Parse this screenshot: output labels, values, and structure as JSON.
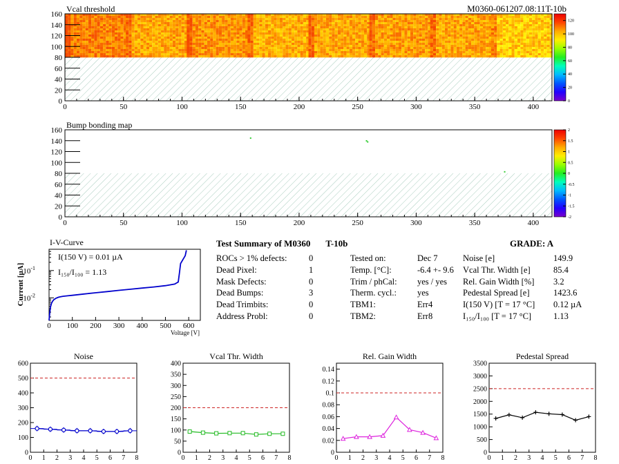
{
  "module_id": "M0360-061207.08:11T-10b",
  "chart_data": [
    {
      "type": "heatmap",
      "title": "Vcal threshold",
      "x_ticks": [
        "0",
        "50",
        "100",
        "150",
        "200",
        "250",
        "300",
        "350",
        "400"
      ],
      "y_ticks": [
        "0",
        "20",
        "40",
        "60",
        "80",
        "100",
        "120",
        "140",
        "160"
      ],
      "xlim": [
        0,
        416
      ],
      "ylim": [
        0,
        160
      ],
      "populated_rows": [
        80,
        160
      ],
      "roc_mean_values": [
        108,
        100,
        104,
        98,
        100,
        102,
        100,
        92
      ],
      "colorbar_ticks": [
        "0",
        "20",
        "40",
        "60",
        "80",
        "100",
        "120"
      ],
      "colorbar_range": [
        0,
        130
      ]
    },
    {
      "type": "heatmap",
      "title": "Bump bonding map",
      "x_ticks": [
        "0",
        "50",
        "100",
        "150",
        "200",
        "250",
        "300",
        "350",
        "400"
      ],
      "y_ticks": [
        "0",
        "20",
        "40",
        "60",
        "80",
        "100",
        "120",
        "140",
        "160"
      ],
      "xlim": [
        0,
        416
      ],
      "ylim": [
        0,
        160
      ],
      "defect_pixels": [
        [
          158,
          146
        ],
        [
          257,
          141
        ],
        [
          258,
          139
        ],
        [
          375,
          84
        ]
      ],
      "colorbar_ticks": [
        "-2",
        "-1.5",
        "-1",
        "-0.5",
        "0",
        "0.5",
        "1",
        "1.5",
        "2"
      ],
      "colorbar_range": [
        -2,
        2
      ]
    },
    {
      "type": "line",
      "title": "I-V-Curve",
      "xlabel": "Voltage [V]",
      "ylabel": "Current [µA]",
      "log_y": true,
      "xlim": [
        0,
        650
      ],
      "ylim": [
        0.0015,
        0.6
      ],
      "x_ticks": [
        "0",
        "100",
        "200",
        "300",
        "400",
        "500",
        "600"
      ],
      "y_ticks": [
        {
          "value": 0.1,
          "base": "10",
          "exp": "-1"
        },
        {
          "value": 0.01,
          "base": "10",
          "exp": "-2"
        }
      ],
      "annotations": [
        "I(150 V) = 0.01 µA",
        "I₁₅₀/I₁₀₀ = 1.13"
      ],
      "x": [
        0,
        3,
        6,
        10,
        15,
        20,
        30,
        40,
        50,
        60,
        80,
        100,
        150,
        200,
        250,
        300,
        350,
        400,
        450,
        500,
        540,
        555,
        560,
        565,
        575,
        585,
        590
      ],
      "y": [
        0.0015,
        0.0028,
        0.0045,
        0.0062,
        0.0075,
        0.0085,
        0.0097,
        0.0105,
        0.011,
        0.0114,
        0.0119,
        0.0124,
        0.0138,
        0.0154,
        0.017,
        0.0188,
        0.0207,
        0.0228,
        0.025,
        0.028,
        0.032,
        0.038,
        0.08,
        0.18,
        0.25,
        0.35,
        0.55
      ]
    },
    {
      "type": "line",
      "title": "Noise",
      "xlim": [
        0,
        8
      ],
      "ylim": [
        0,
        600
      ],
      "x_ticks": [
        "0",
        "1",
        "2",
        "3",
        "4",
        "5",
        "6",
        "7",
        "8"
      ],
      "y_ticks": [
        "0",
        "100",
        "200",
        "300",
        "400",
        "500",
        "600"
      ],
      "limit": 500,
      "color": "#0000cc",
      "marker": "circle",
      "error_bars": true,
      "x": [
        0.5,
        1.5,
        2.5,
        3.5,
        4.5,
        5.5,
        6.5,
        7.5
      ],
      "y": [
        160,
        155,
        150,
        145,
        145,
        140,
        140,
        145
      ]
    },
    {
      "type": "line",
      "title": "Vcal Thr. Width",
      "xlim": [
        0,
        8
      ],
      "ylim": [
        0,
        400
      ],
      "x_ticks": [
        "0",
        "1",
        "2",
        "3",
        "4",
        "5",
        "6",
        "7",
        "8"
      ],
      "y_ticks": [
        "0",
        "50",
        "100",
        "150",
        "200",
        "250",
        "300",
        "350",
        "400"
      ],
      "limit": 200,
      "color": "#22bb22",
      "marker": "square",
      "error_bars": false,
      "x": [
        0.5,
        1.5,
        2.5,
        3.5,
        4.5,
        5.5,
        6.5,
        7.5
      ],
      "y": [
        93,
        88,
        85,
        86,
        86,
        80,
        83,
        83
      ]
    },
    {
      "type": "line",
      "title": "Rel. Gain Width",
      "xlim": [
        0,
        8
      ],
      "ylim": [
        0,
        0.15
      ],
      "x_ticks": [
        "0",
        "1",
        "2",
        "3",
        "4",
        "5",
        "6",
        "7",
        "8"
      ],
      "y_ticks": [
        "0",
        "0.02",
        "0.04",
        "0.06",
        "0.08",
        "0.1",
        "0.12",
        "0.14"
      ],
      "limit": 0.1,
      "color": "#dd22dd",
      "marker": "triangle",
      "error_bars": false,
      "x": [
        0.5,
        1.5,
        2.5,
        3.5,
        4.5,
        5.5,
        6.5,
        7.5
      ],
      "y": [
        0.023,
        0.026,
        0.026,
        0.028,
        0.059,
        0.038,
        0.033,
        0.024
      ]
    },
    {
      "type": "line",
      "title": "Pedestal Spread",
      "xlim": [
        0,
        8
      ],
      "ylim": [
        0,
        3500
      ],
      "x_ticks": [
        "0",
        "1",
        "2",
        "3",
        "4",
        "5",
        "6",
        "7",
        "8"
      ],
      "y_ticks": [
        "0",
        "500",
        "1000",
        "1500",
        "2000",
        "2500",
        "3000",
        "3500"
      ],
      "limit": 2500,
      "color": "#000000",
      "marker": "cross",
      "error_bars": false,
      "x": [
        0.5,
        1.5,
        2.5,
        3.5,
        4.5,
        5.5,
        6.5,
        7.5
      ],
      "y": [
        1330,
        1470,
        1360,
        1570,
        1510,
        1480,
        1260,
        1400
      ]
    }
  ],
  "summary": {
    "title": "Test Summary of M0360",
    "title_tag": "T-10b",
    "grade": "GRADE:  A",
    "defects": [
      {
        "label": "ROCs > 1% defects:",
        "value": "0"
      },
      {
        "label": "Dead Pixel:",
        "value": "1"
      },
      {
        "label": "Mask Defects:",
        "value": "0"
      },
      {
        "label": "Dead Bumps:",
        "value": "3"
      },
      {
        "label": "Dead Trimbits:",
        "value": "0"
      },
      {
        "label": "Address Probl:",
        "value": "0"
      }
    ],
    "conditions": [
      {
        "label": "Tested on:",
        "value": "Dec 7"
      },
      {
        "label": "Temp. [°C]:",
        "value": "-6.4 +- 9.6"
      },
      {
        "label": "Trim / phCal:",
        "value": "yes / yes"
      },
      {
        "label": "Therm. cycl.:",
        "value": "yes"
      },
      {
        "label": "TBM1:",
        "value": "Err4"
      },
      {
        "label": "TBM2:",
        "value": "Err8"
      }
    ],
    "results": [
      {
        "label": "Noise [e]",
        "value": "149.9"
      },
      {
        "label": "Vcal Thr. Width [e]",
        "value": "85.4"
      },
      {
        "label": "Rel. Gain Width [%]",
        "value": "3.2"
      },
      {
        "label": "Pedestal Spread [e]",
        "value": "1423.6"
      },
      {
        "label": "I(150 V)  [T = 17 °C]",
        "value": "0.12 µA"
      },
      {
        "label": "I₁₅₀/I₁₀₀   [T = 17 °C]",
        "value": "1.13"
      }
    ]
  }
}
